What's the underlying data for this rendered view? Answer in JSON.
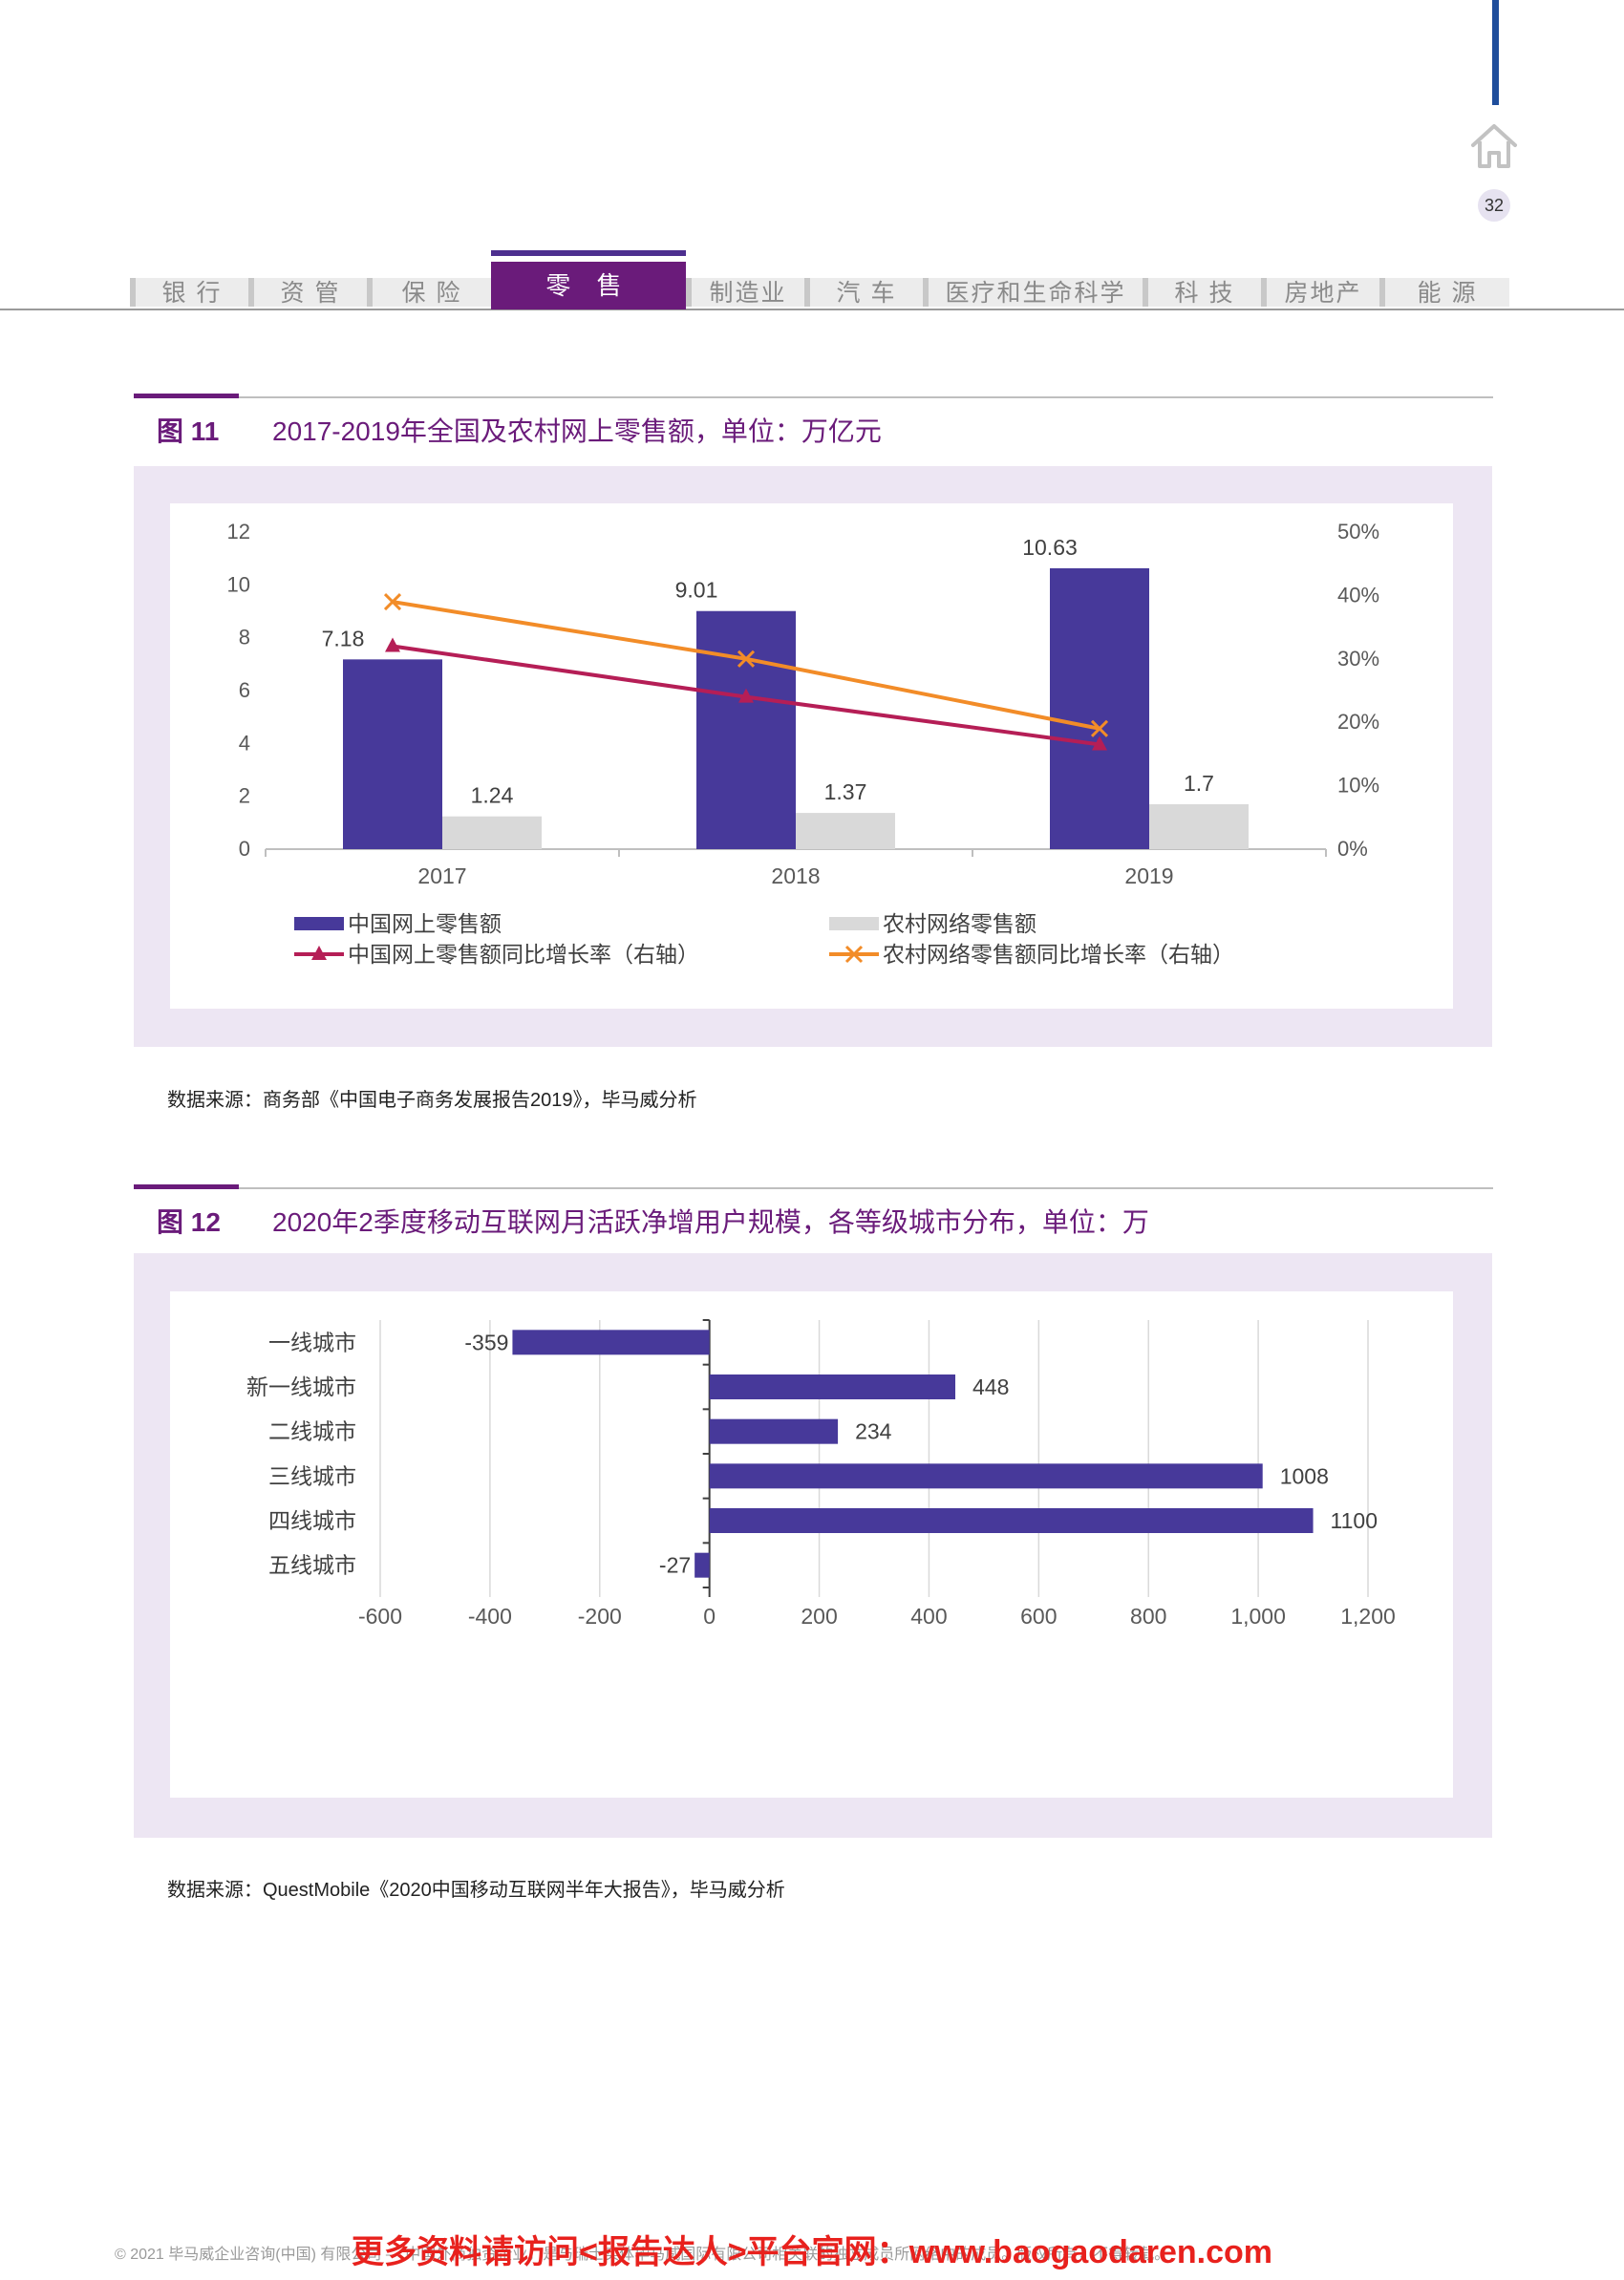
{
  "page": {
    "number": "32"
  },
  "nav": {
    "tabs": [
      {
        "label": "银 行"
      },
      {
        "label": "资 管"
      },
      {
        "label": "保 险"
      },
      {
        "label": "零 售"
      },
      {
        "label": "制造业"
      },
      {
        "label": "汽 车"
      },
      {
        "label": "医疗和生命科学"
      },
      {
        "label": "科 技"
      },
      {
        "label": "房地产"
      },
      {
        "label": "能 源"
      }
    ],
    "active_index": 3
  },
  "figure11": {
    "label": "图 11",
    "title": "2017-2019年全国及农村网上零售额，单位：万亿元",
    "source": "数据来源：商务部《中国电子商务发展报告2019》，毕马威分析"
  },
  "figure12": {
    "label": "图 12",
    "title": "2020年2季度移动互联网月活跃净增用户规模，各等级城市分布，单位：万",
    "source": "数据来源：QuestMobile《2020中国移动互联网半年大报告》，毕马威分析"
  },
  "footer": {
    "copyright": "© 2021 毕马威企业咨询(中国) 有限公司 — 中国外商独资企业，是与瑞士实体毕马威国际有限公司相关联的独立成员所网络中的成员。版权所有，不得转载。",
    "promo": "更多资料请访问<报告达人>平台官网：www.baogaodaren.com"
  },
  "chart_data": [
    {
      "type": "bar",
      "categories": [
        "2017",
        "2018",
        "2019"
      ],
      "series": [
        {
          "name": "中国网上零售额",
          "kind": "bar",
          "axis": "left",
          "color": "#47399a",
          "values": [
            7.18,
            9.01,
            10.63
          ],
          "data_labels": [
            "7.18",
            "9.01",
            "10.63"
          ]
        },
        {
          "name": "农村网络零售额",
          "kind": "bar",
          "axis": "left",
          "color": "#d9d9d9",
          "values": [
            1.24,
            1.37,
            1.7
          ],
          "data_labels": [
            "1.24",
            "1.37",
            "1.7"
          ]
        },
        {
          "name": "中国网上零售额同比增长率（右轴）",
          "kind": "line",
          "axis": "right",
          "marker": "triangle",
          "color": "#b51e56",
          "values": [
            32,
            24,
            16.5
          ]
        },
        {
          "name": "农村网络零售额同比增长率（右轴）",
          "kind": "line",
          "axis": "right",
          "marker": "x",
          "color": "#f28c28",
          "values": [
            39,
            30,
            19
          ]
        }
      ],
      "ylim": [
        0,
        12
      ],
      "yticks": [
        "0",
        "2",
        "4",
        "6",
        "8",
        "10",
        "12"
      ],
      "y2lim": [
        0,
        50
      ],
      "y2ticks": [
        "0%",
        "10%",
        "20%",
        "30%",
        "40%",
        "50%"
      ],
      "grid": false,
      "legend": "bottom"
    },
    {
      "type": "bar",
      "orientation": "horizontal",
      "categories": [
        "一线城市",
        "新一线城市",
        "二线城市",
        "三线城市",
        "四线城市",
        "五线城市"
      ],
      "values": [
        -359,
        448,
        234,
        1008,
        1100,
        -27
      ],
      "data_labels": [
        "-359",
        "448",
        "234",
        "1008",
        "1100",
        "-27"
      ],
      "color": "#47399a",
      "xlim": [
        -600,
        1200
      ],
      "xticks": [
        "-600",
        "-400",
        "-200",
        "0",
        "200",
        "400",
        "600",
        "800",
        "1,000",
        "1,200"
      ],
      "grid": "vertical"
    }
  ]
}
